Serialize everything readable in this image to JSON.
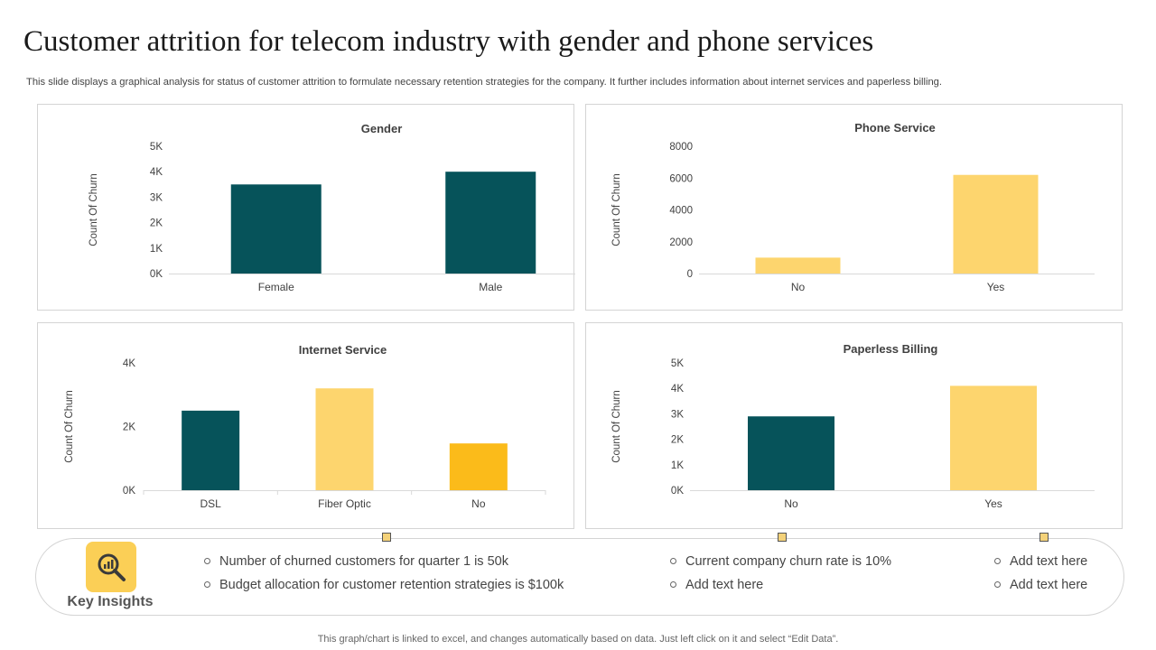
{
  "title": "Customer attrition for telecom industry with gender and phone services",
  "subtitle": "This slide displays a graphical analysis for status of customer attrition to formulate necessary retention strategies for the company. It further includes information about internet services and paperless billing.",
  "colors": {
    "teal": "#06535a",
    "light_yellow": "#fdd56e",
    "gold": "#fbbb1a"
  },
  "chart_data": [
    {
      "type": "bar",
      "title": "Gender",
      "ylabel": "Count Of Churn",
      "categories": [
        "Female",
        "Male"
      ],
      "values": [
        3500,
        4000
      ],
      "bar_colors": [
        "#06535a",
        "#06535a"
      ],
      "ylim": [
        0,
        5000
      ],
      "yticks": [
        "0K",
        "1K",
        "2K",
        "3K",
        "4K",
        "5K"
      ],
      "grid": false
    },
    {
      "type": "bar",
      "title": "Phone Service",
      "ylabel": "Count Of Churn",
      "categories": [
        "No",
        "Yes"
      ],
      "values": [
        1000,
        6200
      ],
      "bar_colors": [
        "#fdd56e",
        "#fdd56e"
      ],
      "ylim": [
        0,
        8000
      ],
      "yticks": [
        "0",
        "2000",
        "4000",
        "6000",
        "8000"
      ],
      "grid": false
    },
    {
      "type": "bar",
      "title": "Internet Service",
      "ylabel": "Count Of Churn",
      "categories": [
        "DSL",
        "Fiber Optic",
        "No"
      ],
      "values": [
        2500,
        3200,
        1470
      ],
      "bar_colors": [
        "#06535a",
        "#fdd56e",
        "#fbbb1a"
      ],
      "ylim": [
        0,
        4000
      ],
      "yticks": [
        "0K",
        "2K",
        "4K"
      ],
      "grid": false
    },
    {
      "type": "bar",
      "title": "Paperless Billing",
      "ylabel": "Count Of Churn",
      "categories": [
        "No",
        "Yes"
      ],
      "values": [
        2900,
        4100
      ],
      "bar_colors": [
        "#06535a",
        "#fdd56e"
      ],
      "ylim": [
        0,
        5000
      ],
      "yticks": [
        "0K",
        "1K",
        "2K",
        "3K",
        "4K",
        "5K"
      ],
      "grid": false
    }
  ],
  "insights": {
    "label": "Key Insights",
    "icon": "magnifier-chart-icon",
    "bullets": [
      "Number of churned customers for quarter 1 is 50k",
      "Budget allocation for customer retention strategies is $100k",
      "Current company churn rate is 10%",
      "Add text here",
      "Add text here",
      "Add text here"
    ]
  },
  "footer": "This graph/chart is linked to excel, and changes automatically based on data. Just left click on it and select “Edit Data”."
}
